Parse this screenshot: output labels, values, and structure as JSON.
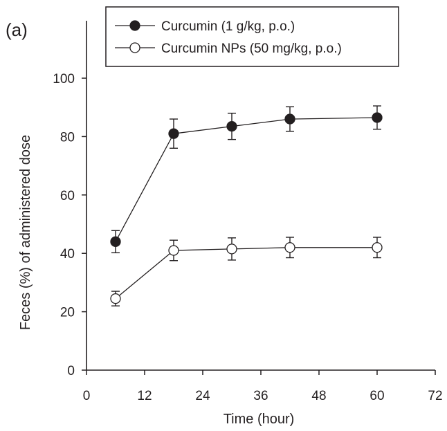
{
  "chart_data": {
    "type": "line",
    "panel_label": "(a)",
    "title": "",
    "xlabel": "Time (hour)",
    "ylabel": "Feces (%) of administered dose",
    "xlim": [
      0,
      72
    ],
    "ylim": [
      0,
      110
    ],
    "xticks": [
      0,
      12,
      24,
      36,
      48,
      60,
      72
    ],
    "yticks": [
      0,
      20,
      40,
      60,
      80,
      100
    ],
    "grid": false,
    "legend_position": "top",
    "series": [
      {
        "name": "Curcumin (1 g/kg, p.o.)",
        "marker": "filled-circle",
        "color": "#231f20",
        "x": [
          6,
          18,
          30,
          42,
          60
        ],
        "y": [
          44,
          81,
          83.5,
          86,
          86.5
        ],
        "err": [
          3.8,
          5,
          4.5,
          4.2,
          4
        ]
      },
      {
        "name": "Curcumin NPs (50 mg/kg, p.o.)",
        "marker": "open-circle",
        "color": "#231f20",
        "x": [
          6,
          18,
          30,
          42,
          60
        ],
        "y": [
          24.5,
          41,
          41.5,
          42,
          42
        ],
        "err": [
          2.5,
          3.5,
          3.8,
          3.5,
          3.5
        ]
      }
    ]
  }
}
